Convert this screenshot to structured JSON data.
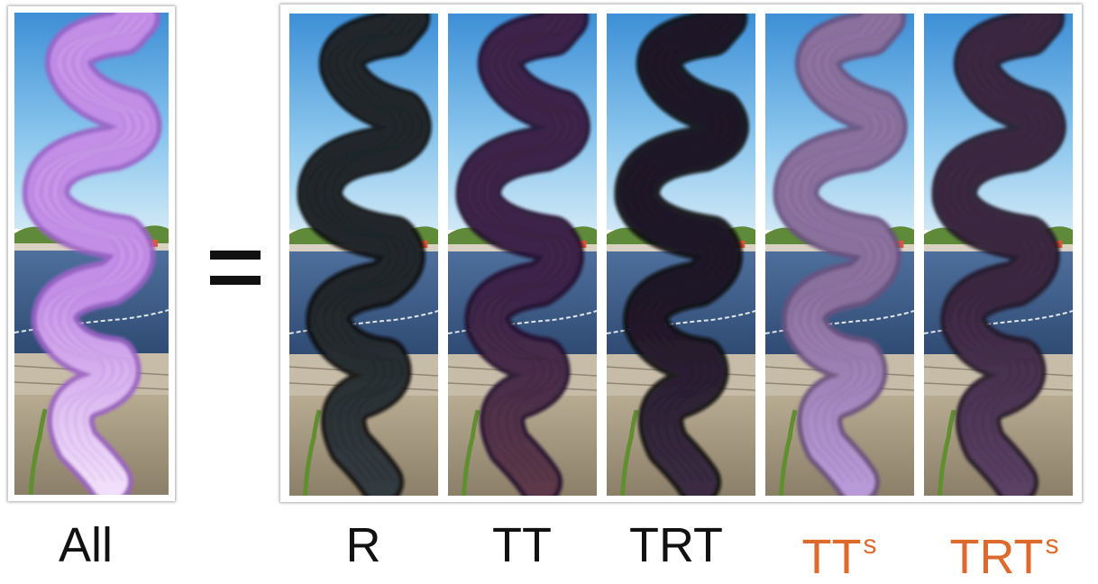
{
  "equals_sign": "=",
  "panels": [
    {
      "id": "all",
      "hair_color": "#c38ee6",
      "hair_shade": "#9b63c7",
      "hair_tip": "#f1defa"
    },
    {
      "id": "r",
      "hair_color": "#20272a",
      "hair_shade": "#0c1012",
      "hair_tip": "#333a3f"
    },
    {
      "id": "tt",
      "hair_color": "#3c2448",
      "hair_shade": "#22122c",
      "hair_tip": "#5b3848"
    },
    {
      "id": "trt",
      "hair_color": "#1e1425",
      "hair_shade": "#0d0812",
      "hair_tip": "#3a2c42"
    },
    {
      "id": "tts",
      "hair_color": "#8a6f9c",
      "hair_shade": "#6a5280",
      "hair_tip": "#b89ad8"
    },
    {
      "id": "trts",
      "hair_color": "#3a2640",
      "hair_shade": "#241628",
      "hair_tip": "#5a4064"
    }
  ],
  "labels": [
    {
      "main": "All",
      "sup": "",
      "color": "#111111"
    },
    {
      "main": "R",
      "sup": "",
      "color": "#111111"
    },
    {
      "main": "TT",
      "sup": "",
      "color": "#111111"
    },
    {
      "main": "TRT",
      "sup": "",
      "color": "#111111"
    },
    {
      "main": "TT",
      "sup": "s",
      "color": "#dd6a2c"
    },
    {
      "main": "TRT",
      "sup": "s",
      "color": "#dd6a2c"
    }
  ]
}
